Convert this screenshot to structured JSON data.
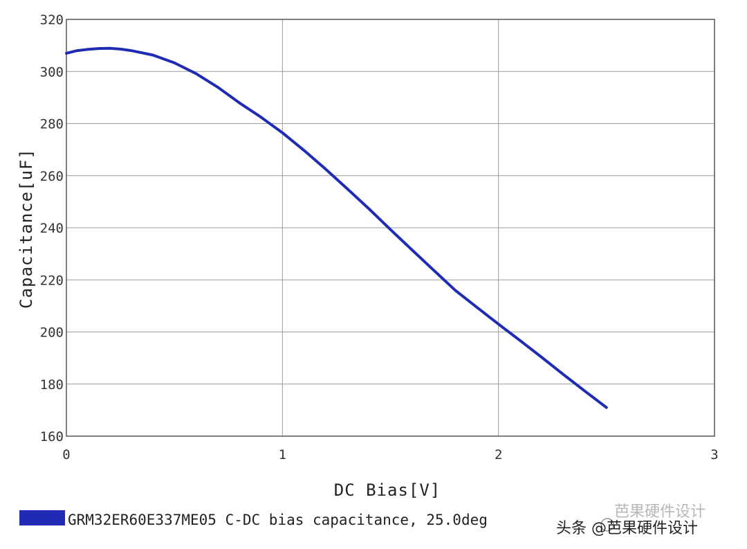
{
  "chart_data": {
    "type": "line",
    "title": "",
    "xlabel": "DC Bias[V]",
    "ylabel": "Capacitance[uF]",
    "xlim": [
      0,
      3
    ],
    "ylim": [
      160,
      320
    ],
    "x_ticks": [
      "0",
      "1",
      "2",
      "3"
    ],
    "y_ticks": [
      "160",
      "180",
      "200",
      "220",
      "240",
      "260",
      "280",
      "300",
      "320"
    ],
    "grid": true,
    "legend_position": "bottom-left",
    "series": [
      {
        "name": "GRM32ER60E337ME05 C-DC bias capacitance, 25.0deg",
        "color": "#1f2bb4",
        "x": [
          0,
          0.05,
          0.1,
          0.15,
          0.2,
          0.25,
          0.3,
          0.4,
          0.5,
          0.6,
          0.7,
          0.8,
          0.9,
          1.0,
          1.1,
          1.2,
          1.3,
          1.4,
          1.5,
          1.6,
          1.7,
          1.8,
          1.9,
          2.0,
          2.1,
          2.2,
          2.3,
          2.4,
          2.5
        ],
        "y": [
          307,
          308,
          308.5,
          308.8,
          308.9,
          308.6,
          308,
          306.3,
          303.3,
          299.2,
          294,
          288,
          282.5,
          276.5,
          269.7,
          262.5,
          255,
          247.3,
          239.3,
          231.5,
          223.7,
          216,
          209.5,
          203,
          196.7,
          190.3,
          183.7,
          177.3,
          171
        ]
      }
    ]
  },
  "watermark": {
    "faint": "芭果硬件设计",
    "main": "头条 @芭果硬件设计"
  }
}
